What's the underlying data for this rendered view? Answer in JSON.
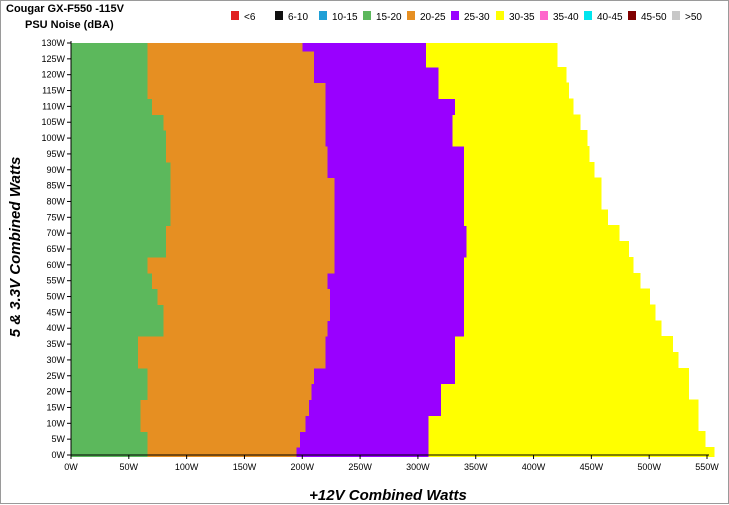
{
  "chart_data": {
    "type": "heatmap",
    "title": "Cougar GX-F550 -115V",
    "subtitle": "PSU Noise (dBA)",
    "xlabel": "+12V Combined Watts",
    "ylabel": "5 & 3.3V Combined Watts",
    "xlim": [
      0,
      550
    ],
    "ylim": [
      0,
      130
    ],
    "x_ticks": [
      "0W",
      "50W",
      "100W",
      "150W",
      "200W",
      "250W",
      "300W",
      "350W",
      "400W",
      "450W",
      "500W",
      "550W"
    ],
    "y_ticks": [
      "0W",
      "5W",
      "10W",
      "15W",
      "20W",
      "25W",
      "30W",
      "35W",
      "40W",
      "45W",
      "50W",
      "55W",
      "60W",
      "65W",
      "70W",
      "75W",
      "80W",
      "85W",
      "90W",
      "95W",
      "100W",
      "105W",
      "110W",
      "115W",
      "120W",
      "125W",
      "130W"
    ],
    "legend": [
      {
        "label": "<6",
        "color": "#e02020"
      },
      {
        "label": "6-10",
        "color": "#101010"
      },
      {
        "label": "10-15",
        "color": "#1f9fd6"
      },
      {
        "label": "15-20",
        "color": "#5cb85c"
      },
      {
        "label": "20-25",
        "color": "#e68f22"
      },
      {
        "label": "25-30",
        "color": "#9900ff"
      },
      {
        "label": "30-35",
        "color": "#ffff00"
      },
      {
        "label": "35-40",
        "color": "#ff66cc"
      },
      {
        "label": "40-45",
        "color": "#00e5ee"
      },
      {
        "label": "45-50",
        "color": "#800000"
      },
      {
        "label": ">50",
        "color": "#c8c8c8"
      }
    ],
    "legend_placement": "top",
    "grid": false,
    "bands": {
      "y": [
        0,
        5,
        10,
        15,
        20,
        25,
        30,
        35,
        40,
        45,
        50,
        55,
        60,
        65,
        70,
        75,
        80,
        85,
        90,
        95,
        100,
        105,
        110,
        115,
        120,
        125,
        130
      ],
      "b1520": [
        66,
        66,
        60,
        60,
        66,
        66,
        58,
        58,
        80,
        80,
        75,
        70,
        66,
        82,
        82,
        86,
        86,
        86,
        86,
        82,
        82,
        80,
        70,
        66,
        66,
        66,
        66
      ],
      "b2025": [
        195,
        198,
        203,
        206,
        208,
        210,
        220,
        220,
        222,
        224,
        224,
        222,
        228,
        228,
        228,
        228,
        228,
        228,
        222,
        222,
        220,
        220,
        220,
        220,
        210,
        210,
        200
      ],
      "b2530": [
        309,
        309,
        309,
        320,
        320,
        332,
        332,
        332,
        340,
        340,
        340,
        340,
        340,
        342,
        342,
        340,
        340,
        340,
        340,
        340,
        330,
        330,
        332,
        318,
        318,
        307,
        307
      ],
      "b3035": [
        556,
        548,
        542,
        542,
        534,
        534,
        525,
        520,
        510,
        505,
        500,
        492,
        486,
        482,
        474,
        464,
        458,
        458,
        452,
        448,
        446,
        440,
        434,
        430,
        428,
        420,
        420
      ]
    }
  }
}
